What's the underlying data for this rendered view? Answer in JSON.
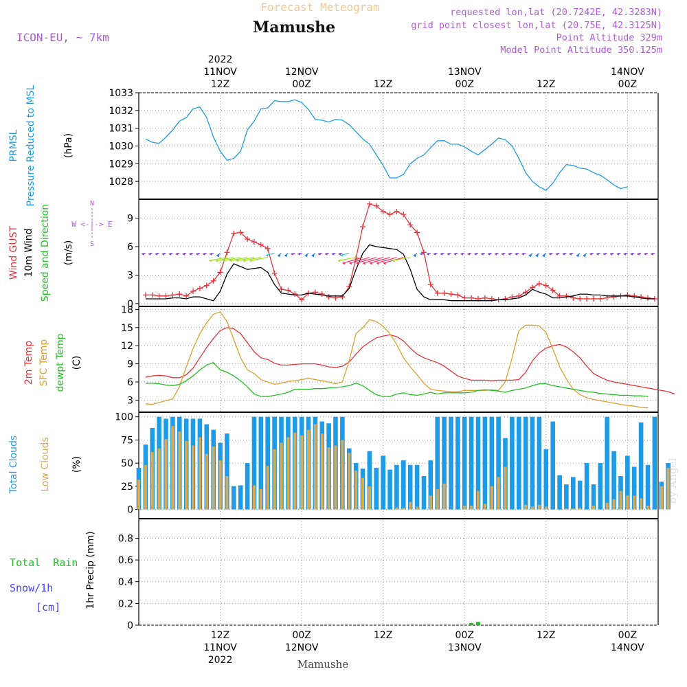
{
  "header": {
    "title_faint": "Forecast Meteogram",
    "location": "Mamushe",
    "model": "ICON-EU, ~ 7km",
    "requested": "requested lon,lat (20.7242E, 42.3283N)",
    "grid_point": "grid point closest lon,lat (20.75E, 42.3125N)",
    "point_alt": "Point Altitude 329m",
    "model_alt": "Model Point Altitude 350.125m",
    "footer_location": "Mamushe",
    "watermark": "by Angel"
  },
  "colors": {
    "pressure": "#1e9be6",
    "gust": "#e8343a",
    "wind": "#000000",
    "temp2m": "#e8343a",
    "sfc": "#e0a030",
    "dewpt": "#22c022",
    "total_clouds": "#1e9be6",
    "low_clouds": "#d8aa55",
    "rain": "#22c022",
    "snow": "#4444ff",
    "purple": "#b05cd8",
    "faint": "#f0c890"
  },
  "time_axis": {
    "top_labels": [
      {
        "h": 12,
        "lines": [
          "2022",
          "11NOV",
          "12Z"
        ]
      },
      {
        "h": 24,
        "lines": [
          "12NOV",
          "00Z"
        ]
      },
      {
        "h": 36,
        "lines": [
          "12Z"
        ]
      },
      {
        "h": 48,
        "lines": [
          "13NOV",
          "00Z"
        ]
      },
      {
        "h": 60,
        "lines": [
          "12Z"
        ]
      },
      {
        "h": 72,
        "lines": [
          "14NOV",
          "00Z"
        ]
      }
    ],
    "bottom_labels": [
      {
        "h": 12,
        "lines": [
          "12Z",
          "11NOV",
          "2022"
        ]
      },
      {
        "h": 24,
        "lines": [
          "00Z",
          "12NOV"
        ]
      },
      {
        "h": 36,
        "lines": [
          "12Z"
        ]
      },
      {
        "h": 48,
        "lines": [
          "00Z",
          "13NOV"
        ]
      },
      {
        "h": 60,
        "lines": [
          "12Z"
        ]
      },
      {
        "h": 72,
        "lines": [
          "00Z",
          "14NOV"
        ]
      }
    ]
  },
  "panel_labels": {
    "pressure": {
      "a": "PRMSL",
      "b": "Pressure Reduced to MSL",
      "unit": "(hPa)"
    },
    "wind": {
      "gust": "Wind GUST",
      "wind": "10m Wind",
      "dir": "Speed and Direction",
      "unit": "(m/s)",
      "compass": "W <-|-> E",
      "n": "N",
      "s": "S"
    },
    "temp": {
      "t2m": "2m Temp",
      "sfc": "SFC Temp",
      "dew": "dewpt Temp",
      "unit": "(C)"
    },
    "clouds": {
      "total": "Total Clouds",
      "low": "Low Clouds",
      "unit": "(%)"
    },
    "precip": {
      "rain": "Total  Rain",
      "snow": "Snow/1h",
      "cm": "[cm]",
      "unit": "1hr Precip (mm)"
    }
  },
  "chart_data": [
    {
      "type": "line",
      "name": "pressure",
      "ylim": [
        1027.0,
        1033.0
      ],
      "yticks": [
        1028,
        1029,
        1030,
        1031,
        1032,
        1033
      ],
      "x_start_hour": 1,
      "series": [
        {
          "name": "PRMSL",
          "values": [
            1030.4,
            1030.2,
            1030.15,
            1030.5,
            1030.9,
            1031.4,
            1031.6,
            1032.1,
            1032.2,
            1031.6,
            1030.5,
            1029.7,
            1029.2,
            1029.3,
            1029.7,
            1030.9,
            1031.4,
            1032.1,
            1032.15,
            1032.55,
            1032.5,
            1032.5,
            1032.6,
            1032.45,
            1032.05,
            1031.5,
            1031.45,
            1031.35,
            1031.5,
            1031.45,
            1031.2,
            1030.8,
            1030.4,
            1030.1,
            1029.5,
            1028.9,
            1028.2,
            1028.2,
            1028.4,
            1029.0,
            1029.3,
            1029.5,
            1029.9,
            1030.3,
            1030.3,
            1030.1,
            1030.1,
            1029.95,
            1029.7,
            1029.5,
            1029.8,
            1030.1,
            1030.45,
            1030.35,
            1030.0,
            1029.3,
            1028.5,
            1028.0,
            1027.7,
            1027.5,
            1027.9,
            1028.5,
            1028.95,
            1028.9,
            1028.75,
            1028.7,
            1028.5,
            1028.35,
            1028.1,
            1027.8,
            1027.6,
            1027.7
          ]
        }
      ]
    },
    {
      "type": "line",
      "name": "wind",
      "ylim": [
        -0.3,
        11.0
      ],
      "yticks": [
        0,
        3,
        6,
        9
      ],
      "x_start_hour": 1,
      "series": [
        {
          "name": "Wind GUST",
          "values": [
            0.9,
            0.9,
            0.8,
            0.8,
            0.9,
            1.0,
            0.8,
            1.3,
            1.6,
            1.9,
            2.4,
            3.3,
            5.4,
            7.4,
            7.5,
            6.8,
            6.5,
            6.2,
            5.8,
            3.2,
            1.5,
            1.4,
            1.0,
            0.4,
            1.1,
            1.2,
            1.0,
            0.7,
            0.6,
            0.7,
            1.8,
            4.8,
            8.1,
            10.5,
            10.3,
            9.7,
            9.4,
            9.7,
            9.4,
            8.3,
            7.5,
            5.4,
            2.0,
            1.1,
            1.1,
            1.0,
            0.9,
            0.6,
            0.6,
            0.5,
            0.6,
            0.5,
            0.4,
            0.5,
            0.7,
            0.8,
            1.2,
            1.7,
            2.1,
            1.9,
            1.4,
            0.8,
            0.8,
            0.6,
            0.5,
            0.5,
            0.5,
            0.5,
            0.6,
            0.7,
            0.8,
            0.9,
            0.8,
            0.7,
            0.6,
            0.5
          ]
        },
        {
          "name": "10m Wind",
          "values": [
            0.5,
            0.5,
            0.5,
            0.5,
            0.6,
            0.6,
            0.5,
            0.7,
            0.7,
            0.5,
            0.3,
            1.3,
            3.1,
            4.2,
            3.9,
            3.6,
            3.7,
            3.8,
            3.3,
            2.0,
            1.1,
            1.0,
            0.9,
            0.9,
            1.1,
            1.0,
            0.9,
            0.8,
            0.8,
            0.8,
            1.6,
            3.6,
            5.3,
            6.2,
            6.0,
            5.9,
            5.8,
            5.7,
            5.2,
            3.6,
            1.5,
            0.7,
            0.4,
            0.4,
            0.4,
            0.3,
            0.3,
            0.3,
            0.3,
            0.3,
            0.3,
            0.3,
            0.4,
            0.4,
            0.5,
            0.6,
            0.9,
            1.5,
            1.2,
            1.0,
            0.6,
            0.6,
            0.7,
            0.8,
            1.0,
            1.0,
            0.9,
            0.9,
            0.8,
            0.8,
            0.8,
            0.8,
            0.7,
            0.6,
            0.5,
            0.5
          ]
        }
      ]
    },
    {
      "type": "line",
      "name": "temperature",
      "ylim": [
        1.0,
        18.5
      ],
      "yticks": [
        3,
        6,
        9,
        12,
        15,
        18
      ],
      "x_start_hour": 1,
      "series": [
        {
          "name": "2m Temp",
          "values": [
            6.8,
            7.0,
            7.1,
            7.0,
            6.7,
            6.7,
            7.2,
            8.3,
            10.0,
            11.7,
            13.2,
            14.5,
            15.0,
            14.8,
            14.0,
            12.5,
            11.0,
            10.0,
            9.7,
            9.1,
            8.8,
            8.8,
            8.9,
            9.0,
            9.0,
            9.0,
            8.8,
            8.5,
            8.4,
            8.6,
            9.3,
            10.6,
            11.8,
            12.6,
            13.3,
            13.6,
            13.8,
            13.5,
            12.8,
            11.6,
            10.6,
            10.0,
            9.6,
            9.2,
            8.6,
            7.8,
            7.0,
            6.6,
            6.3,
            6.3,
            6.3,
            6.2,
            6.3,
            6.3,
            6.3,
            6.4,
            7.6,
            9.5,
            10.8,
            11.6,
            12.0,
            12.2,
            11.8,
            11.0,
            10.0,
            8.6,
            7.4,
            6.8,
            6.3,
            6.0,
            5.8,
            5.6,
            5.4,
            5.2,
            5.0,
            4.8,
            4.6,
            4.4,
            4.0
          ]
        },
        {
          "name": "SFC Temp",
          "values": [
            2.4,
            2.3,
            2.6,
            2.9,
            3.2,
            5.2,
            8.5,
            11.5,
            14.0,
            15.8,
            17.2,
            17.6,
            16.0,
            13.0,
            10.0,
            8.0,
            7.4,
            6.4,
            6.0,
            5.6,
            5.8,
            6.1,
            6.2,
            6.4,
            6.6,
            6.4,
            6.2,
            6.0,
            5.7,
            6.0,
            9.5,
            14.0,
            15.0,
            16.3,
            16.0,
            15.2,
            14.0,
            12.2,
            10.0,
            8.5,
            7.2,
            5.8,
            4.8,
            4.6,
            4.5,
            4.4,
            4.4,
            4.6,
            4.6,
            4.6,
            4.6,
            4.7,
            4.6,
            6.0,
            10.0,
            14.5,
            15.4,
            15.4,
            15.3,
            14.2,
            11.5,
            8.5,
            6.5,
            4.8,
            3.9,
            3.4,
            3.1,
            2.9,
            2.7,
            2.5,
            2.3,
            2.1,
            2.0,
            1.8,
            1.7
          ]
        },
        {
          "name": "dewpt Temp",
          "values": [
            5.8,
            5.8,
            5.7,
            5.5,
            5.4,
            5.6,
            6.2,
            7.0,
            8.0,
            8.8,
            9.2,
            8.0,
            7.6,
            7.0,
            6.2,
            5.2,
            4.0,
            3.6,
            3.6,
            3.8,
            4.0,
            4.3,
            4.8,
            4.8,
            4.8,
            4.9,
            4.9,
            5.0,
            5.1,
            5.2,
            5.4,
            5.8,
            5.4,
            4.6,
            3.9,
            3.6,
            3.6,
            4.0,
            4.2,
            3.9,
            3.8,
            4.0,
            4.3,
            4.0,
            4.2,
            4.2,
            4.2,
            4.2,
            4.3,
            4.6,
            4.7,
            4.6,
            4.5,
            4.3,
            4.6,
            4.8,
            5.0,
            5.4,
            5.7,
            5.7,
            5.4,
            5.2,
            5.0,
            4.8,
            4.6,
            4.4,
            4.3,
            4.1,
            4.0,
            3.9,
            3.8,
            3.8,
            3.7,
            3.7,
            3.6
          ]
        }
      ]
    },
    {
      "type": "bar",
      "name": "clouds",
      "ylim": [
        -10,
        105
      ],
      "yticks": [
        0,
        25,
        50,
        75,
        100
      ],
      "x_start_hour": 0,
      "series": [
        {
          "name": "Total Clouds",
          "values": [
            45,
            70,
            88,
            100,
            98,
            100,
            100,
            98,
            98,
            98,
            92,
            86,
            72,
            82,
            25,
            26,
            50,
            100,
            100,
            100,
            100,
            100,
            100,
            100,
            100,
            100,
            100,
            95,
            93,
            100,
            100,
            66,
            50,
            44,
            63,
            45,
            58,
            43,
            48,
            53,
            48,
            48,
            36,
            53,
            100,
            100,
            100,
            100,
            100,
            100,
            100,
            100,
            100,
            100,
            77,
            100,
            100,
            100,
            100,
            100,
            65,
            95,
            37,
            27,
            35,
            31,
            50,
            27,
            50,
            100,
            63,
            36,
            58,
            46,
            94,
            48,
            100,
            30,
            50
          ]
        },
        {
          "name": "Low Clouds",
          "values": [
            32,
            48,
            62,
            66,
            76,
            90,
            84,
            74,
            69,
            78,
            60,
            68,
            53,
            36,
            0,
            0,
            0,
            26,
            22,
            47,
            65,
            72,
            78,
            83,
            80,
            86,
            92,
            82,
            67,
            69,
            75,
            61,
            42,
            34,
            25,
            0,
            0,
            0,
            2,
            2,
            8,
            3,
            0,
            15,
            22,
            28,
            0,
            0,
            4,
            4,
            20,
            6,
            25,
            35,
            46,
            0,
            0,
            5,
            3,
            5,
            3,
            0,
            0,
            1,
            1,
            2,
            0,
            4,
            0,
            7,
            11,
            20,
            15,
            15,
            12,
            4,
            0,
            25,
            45
          ]
        }
      ]
    },
    {
      "type": "bar",
      "name": "precipitation",
      "ylim": [
        0,
        0.98
      ],
      "yticks": [
        0,
        0.2,
        0.4,
        0.6,
        0.8
      ],
      "x_start_hour": 0,
      "series": [
        {
          "name": "Total Rain",
          "values": [
            0,
            0,
            0,
            0,
            0,
            0,
            0,
            0,
            0,
            0,
            0,
            0,
            0,
            0,
            0,
            0,
            0,
            0,
            0,
            0,
            0,
            0,
            0,
            0,
            0,
            0,
            0,
            0,
            0,
            0,
            0,
            0,
            0,
            0,
            0,
            0,
            0,
            0,
            0,
            0,
            0,
            0,
            0,
            0,
            0,
            0,
            0,
            0,
            0,
            0.02,
            0.03,
            0,
            0,
            0,
            0,
            0,
            0,
            0,
            0,
            0,
            0,
            0,
            0,
            0,
            0,
            0,
            0,
            0,
            0,
            0,
            0,
            0,
            0,
            0,
            0,
            0,
            0
          ]
        }
      ]
    }
  ]
}
